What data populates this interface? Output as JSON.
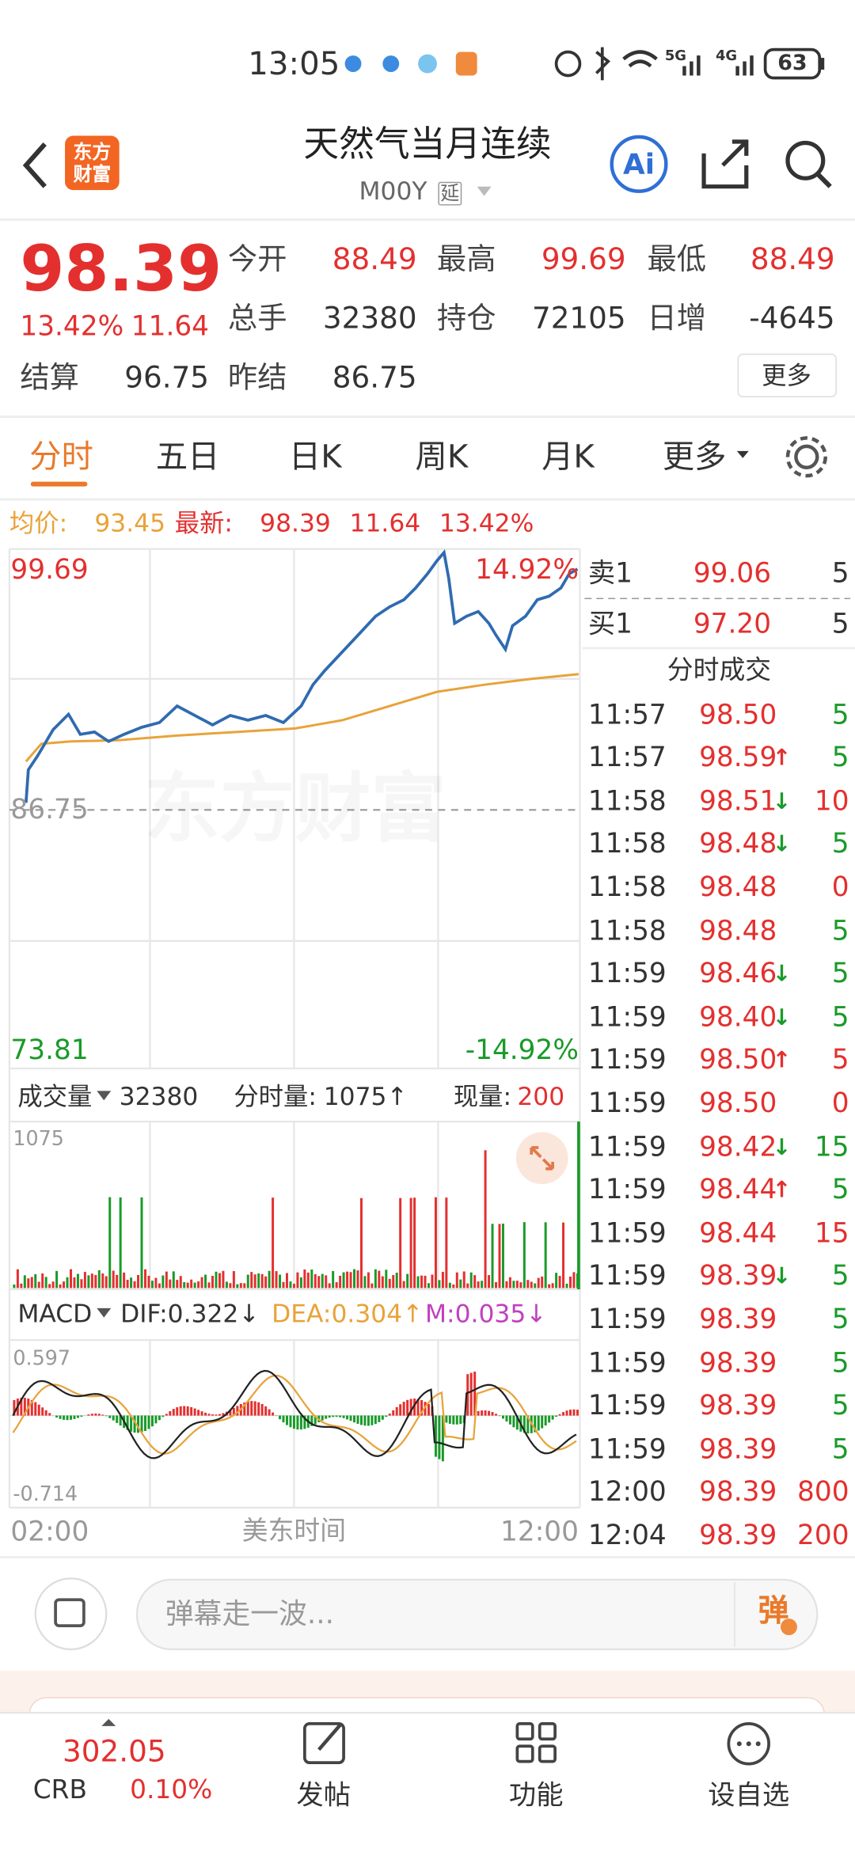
{
  "status_bar": {
    "time": "13:05",
    "network_1": "5G",
    "network_2": "4G",
    "battery": "63"
  },
  "header": {
    "logo_line_1": "东方",
    "logo_line_2": "财富",
    "title": "天然气当月连续",
    "code": "M00Y",
    "delay_tag": "延",
    "ai": "Ai"
  },
  "quote": {
    "price": "98.39",
    "change_pct": "13.42%",
    "change": "11.64",
    "stats": [
      {
        "label": "今开",
        "value": "88.49"
      },
      {
        "label": "最高",
        "value": "99.69"
      },
      {
        "label": "最低",
        "value": "88.49"
      },
      {
        "label": "总手",
        "value": "32380"
      },
      {
        "label": "持仓",
        "value": "72105"
      },
      {
        "label": "日增",
        "value": "-4645"
      },
      {
        "label": "结算",
        "value": "96.75"
      },
      {
        "label": "昨结",
        "value": "86.75"
      }
    ],
    "more": "更多"
  },
  "tabs": [
    "分时",
    "五日",
    "日K",
    "周K",
    "月K",
    "更多"
  ],
  "avg_bar": {
    "avg_label": "均价:",
    "avg": "93.45",
    "latest_label": "最新:",
    "latest": "98.39",
    "change": "11.64",
    "change_pct": "13.42%"
  },
  "price_chart": {
    "high": "99.69",
    "high_pct": "14.92%",
    "base": "86.75",
    "low": "73.81",
    "low_pct": "-14.92%",
    "watermark": "东方财富"
  },
  "volume_bar": {
    "label": "成交量",
    "total": "32380",
    "tick_label": "分时量:",
    "tick": "1075↑",
    "now_label": "现量:",
    "now": "200",
    "max": "1075"
  },
  "macd_bar": {
    "label": "MACD",
    "dif": "DIF:0.322↓",
    "dea": "DEA:0.304↑",
    "m": "M:0.035↓",
    "max": "0.597",
    "min": "-0.714"
  },
  "time_axis": {
    "start": "02:00",
    "zone": "美东时间",
    "end": "12:00"
  },
  "order_book": {
    "sell_label": "卖1",
    "sell_price": "99.06",
    "sell_vol": "5",
    "buy_label": "买1",
    "buy_price": "97.20",
    "buy_vol": "5"
  },
  "trades": {
    "title": "分时成交",
    "rows": [
      {
        "time": "11:57",
        "price": "98.50",
        "vol": "5",
        "vol_color": "green"
      },
      {
        "time": "11:57",
        "price": "98.59",
        "arrow": "↑",
        "vol": "5",
        "vol_color": "green"
      },
      {
        "time": "11:58",
        "price": "98.51",
        "arrow": "↓",
        "vol": "10",
        "vol_color": "red"
      },
      {
        "time": "11:58",
        "price": "98.48",
        "arrow": "↓",
        "vol": "5",
        "vol_color": "green"
      },
      {
        "time": "11:58",
        "price": "98.48",
        "vol": "0",
        "vol_color": "red"
      },
      {
        "time": "11:58",
        "price": "98.48",
        "vol": "5",
        "vol_color": "green"
      },
      {
        "time": "11:59",
        "price": "98.46",
        "arrow": "↓",
        "vol": "5",
        "vol_color": "green"
      },
      {
        "time": "11:59",
        "price": "98.40",
        "arrow": "↓",
        "vol": "5",
        "vol_color": "green"
      },
      {
        "time": "11:59",
        "price": "98.50",
        "arrow": "↑",
        "vol": "5",
        "vol_color": "red"
      },
      {
        "time": "11:59",
        "price": "98.50",
        "vol": "0",
        "vol_color": "red"
      },
      {
        "time": "11:59",
        "price": "98.42",
        "arrow": "↓",
        "vol": "15",
        "vol_color": "green"
      },
      {
        "time": "11:59",
        "price": "98.44",
        "arrow": "↑",
        "vol": "5",
        "vol_color": "green"
      },
      {
        "time": "11:59",
        "price": "98.44",
        "vol": "15",
        "vol_color": "red"
      },
      {
        "time": "11:59",
        "price": "98.39",
        "arrow": "↓",
        "vol": "5",
        "vol_color": "green"
      },
      {
        "time": "11:59",
        "price": "98.39",
        "vol": "5",
        "vol_color": "green"
      },
      {
        "time": "11:59",
        "price": "98.39",
        "vol": "5",
        "vol_color": "green"
      },
      {
        "time": "11:59",
        "price": "98.39",
        "vol": "5",
        "vol_color": "green"
      },
      {
        "time": "11:59",
        "price": "98.39",
        "vol": "5",
        "vol_color": "green"
      },
      {
        "time": "12:00",
        "price": "98.39",
        "vol": "800",
        "vol_color": "red"
      },
      {
        "time": "12:04",
        "price": "98.39",
        "vol": "200",
        "vol_color": "red"
      }
    ]
  },
  "comment_bar": {
    "placeholder": "弹幕走一波...",
    "button": "弹"
  },
  "bottom_nav": {
    "index_name": "CRB",
    "index_value": "302.05",
    "index_pct": "0.10%",
    "items": [
      "发帖",
      "功能",
      "设自选"
    ]
  }
}
